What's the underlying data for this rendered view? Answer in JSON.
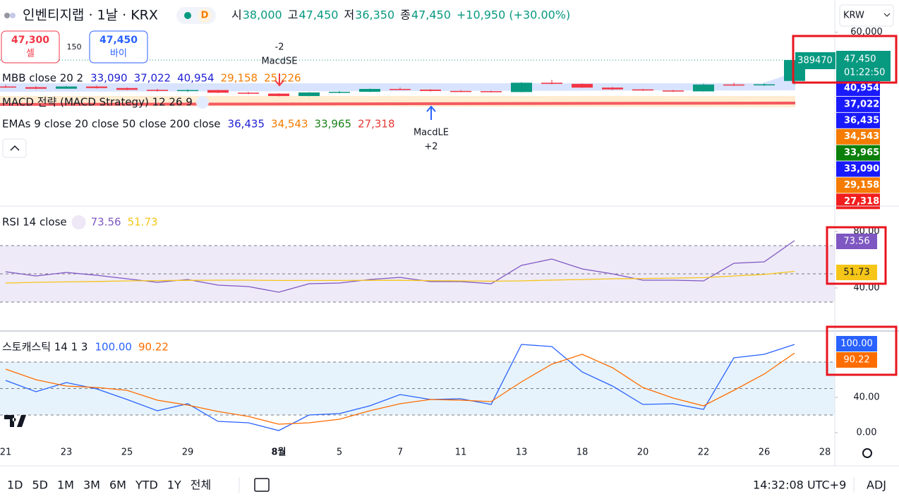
{
  "header": {
    "symbol": "인벤티지랩 · 1날 · KRX",
    "interval_badge": "D",
    "ohlc": [
      {
        "label": "시",
        "value": "38,000"
      },
      {
        "label": "고",
        "value": "47,450"
      },
      {
        "label": "저",
        "value": "36,350"
      },
      {
        "label": "종",
        "value": "47,450"
      }
    ],
    "change": "+10,950 (+30.00%)",
    "currency": "KRW"
  },
  "trade_panel": {
    "sell_price": "47,300",
    "sell_label": "셀",
    "spread": "150",
    "buy_price": "47,450",
    "buy_label": "바이"
  },
  "price_legends": [
    {
      "label": "MBB close 20 2",
      "values": [
        {
          "text": "33,090",
          "color": "#1f1fd6"
        },
        {
          "text": "37,022",
          "color": "#1f1fd6"
        },
        {
          "text": "40,954",
          "color": "#1f1fd6"
        },
        {
          "text": "29,158",
          "color": "#f57c00"
        },
        {
          "text": "25,226",
          "color": "#f57c00"
        }
      ]
    },
    {
      "label": "MACD 전략 (MACD Strategy) 12 26 9",
      "values": []
    },
    {
      "label": "EMAs 9 close 20 close 50 close 200 close",
      "values": [
        {
          "text": "36,435",
          "color": "#1f1fd6"
        },
        {
          "text": "34,543",
          "color": "#f57c00"
        },
        {
          "text": "33,965",
          "color": "#1b7f1b"
        },
        {
          "text": "27,318",
          "color": "#e53935"
        }
      ]
    }
  ],
  "strategy_markers": [
    {
      "qty": "-2",
      "label": "MacdSE"
    },
    {
      "label": "MacdLE",
      "qty": "+2"
    }
  ],
  "price_axis": {
    "volume": "389470",
    "last_price": "47,450",
    "countdown": "01:22:50",
    "badges": [
      {
        "text": "40,954",
        "color": "#1a1aff"
      },
      {
        "text": "37,022",
        "color": "#1a1aff"
      },
      {
        "text": "36,435",
        "color": "#1a1aff"
      },
      {
        "text": "34,543",
        "color": "#f57c00"
      },
      {
        "text": "33,965",
        "color": "#0a800a"
      },
      {
        "text": "33,090",
        "color": "#1a1aff"
      },
      {
        "text": "29,158",
        "color": "#f57c00"
      },
      {
        "text": "27,318",
        "color": "#f21e1e"
      }
    ]
  },
  "chart_data": [
    {
      "type": "candlestick",
      "up_color": "#089981",
      "down_color": "#f23645",
      "open": [
        35500,
        35200,
        34500,
        35500,
        34800,
        34000,
        33500,
        33900,
        32700,
        32300,
        31200,
        32800,
        33100,
        34400,
        34100,
        33500,
        33400,
        33000,
        37200,
        36700,
        35000,
        34200,
        33700,
        33300,
        36400,
        36100,
        38000,
        null
      ],
      "high": [
        36200,
        35600,
        35800,
        35900,
        35100,
        34500,
        34200,
        34000,
        33100,
        32500,
        33000,
        33500,
        34600,
        35000,
        34300,
        33900,
        33600,
        37500,
        38500,
        36900,
        35300,
        34500,
        34000,
        36800,
        37200,
        36900,
        47450,
        null
      ],
      "low": [
        34800,
        34300,
        34400,
        34600,
        33800,
        33200,
        33000,
        32500,
        32000,
        31000,
        31100,
        32400,
        33000,
        33900,
        33200,
        33000,
        32800,
        32900,
        36500,
        34800,
        33900,
        33500,
        33000,
        33200,
        35800,
        35700,
        36350,
        null
      ],
      "close": [
        35200,
        34500,
        35500,
        34800,
        34000,
        33500,
        33900,
        32700,
        32300,
        31200,
        32800,
        33100,
        34400,
        34100,
        33500,
        33400,
        33000,
        37200,
        36700,
        35000,
        34200,
        33700,
        33300,
        36400,
        36100,
        36500,
        47450,
        null
      ],
      "ylim": [
        -18500,
        65000
      ],
      "yticks": [
        {
          "value": 60000,
          "label": "60,000"
        }
      ]
    },
    {
      "type": "line",
      "title": "RSI 14 close",
      "legend_values": [
        "73.56",
        "51.73"
      ],
      "series": [
        {
          "color": "#7e57c2",
          "values": [
            51.5,
            48.5,
            51,
            49,
            46.5,
            44,
            46,
            42,
            41,
            37,
            43,
            43.5,
            46,
            47.5,
            44.5,
            44.5,
            43,
            56,
            60.5,
            53.5,
            50,
            45.5,
            45.5,
            45,
            57.5,
            58.5,
            73.56,
            null
          ]
        },
        {
          "color": "#f5c518",
          "values": [
            43.5,
            44,
            44.3,
            44.6,
            45,
            45.2,
            45.4,
            45.5,
            45.5,
            45.3,
            45.3,
            45.3,
            45.4,
            45.4,
            45.2,
            45,
            44.8,
            45,
            45.6,
            46,
            46.5,
            46.7,
            47,
            47.3,
            48.5,
            49.6,
            51.73,
            null
          ]
        }
      ],
      "ylim": [
        10,
        97.5
      ],
      "yticks": [
        {
          "value": 80,
          "label": "80.00"
        },
        {
          "value": 40,
          "label": "40.00"
        }
      ],
      "hlines": [
        70,
        50,
        30
      ],
      "band": [
        30,
        70
      ],
      "band_color": "#efeaf8"
    },
    {
      "type": "line",
      "title": "스토캐스틱 14 1 3",
      "legend_values": [
        "100.00",
        "90.22"
      ],
      "categories": [
        "21",
        null,
        "23",
        null,
        "25",
        null,
        "29",
        null,
        null,
        "8월",
        null,
        "5",
        null,
        "7",
        null,
        "11",
        null,
        "13",
        null,
        "18",
        null,
        "20",
        null,
        "22",
        null,
        "26",
        null,
        "28"
      ],
      "series": [
        {
          "color": "#2962ff",
          "values": [
            59.2,
            46.4,
            56.8,
            49.6,
            37.6,
            24.8,
            32.8,
            12.8,
            11.2,
            2.4,
            20,
            21.6,
            30.4,
            43.2,
            37.6,
            38.4,
            32,
            100,
            97.6,
            68.8,
            52.8,
            32,
            32.8,
            26.4,
            84.8,
            88.8,
            100,
            null
          ]
        },
        {
          "color": "#ff6d00",
          "values": [
            72,
            60,
            52.8,
            51.2,
            48,
            36.8,
            31.2,
            24,
            18.4,
            9.6,
            11.2,
            15.2,
            24.8,
            32.8,
            37.6,
            36.8,
            35.2,
            57.6,
            77.6,
            88.8,
            73.6,
            51.2,
            39.2,
            30.4,
            48,
            66.4,
            90.22,
            null
          ]
        }
      ],
      "ylim": [
        -1.6,
        114.4
      ],
      "yticks": [
        {
          "value": 40,
          "label": "40.00"
        },
        {
          "value": 0,
          "label": "0.00"
        }
      ],
      "hlines": [
        80,
        50,
        20
      ],
      "band": [
        20,
        80
      ],
      "band_color": "#e6f3fc"
    }
  ],
  "toolbar": {
    "ranges": [
      "1D",
      "5D",
      "1M",
      "3M",
      "6M",
      "YTD",
      "1Y",
      "전체"
    ],
    "clock": "14:32:08 UTC+9",
    "adjust": "ADJ"
  }
}
